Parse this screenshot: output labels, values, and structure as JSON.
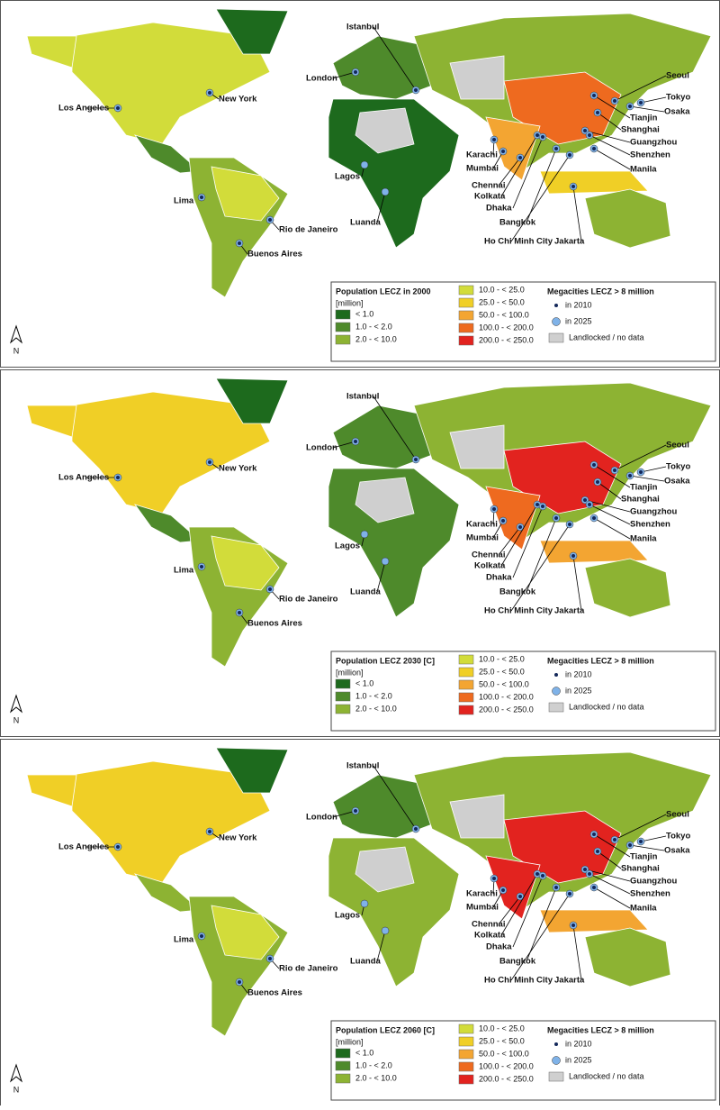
{
  "panels": [
    {
      "legend_title": "Population LECZ in 2000",
      "unit": "[million]"
    },
    {
      "legend_title": "Population LECZ 2030 [C]",
      "unit": "[million]"
    },
    {
      "legend_title": "Population LECZ 2060 [C]",
      "unit": "[million]"
    }
  ],
  "legend_classes": [
    {
      "label": "< 1.0",
      "color": "#1d6a1d"
    },
    {
      "label": "1.0 -     < 2.0",
      "color": "#4e8a2b"
    },
    {
      "label": "2.0 -     < 10.0",
      "color": "#8db333"
    },
    {
      "label": "10.0 -    < 25.0",
      "color": "#d2dc3a"
    },
    {
      "label": "25.0 -    < 50.0",
      "color": "#f0cf26"
    },
    {
      "label": "50.0 -  < 100.0",
      "color": "#f3a532"
    },
    {
      "label": "100.0 -  < 200.0",
      "color": "#ee6a1f"
    },
    {
      "label": "200.0 -  < 250.0",
      "color": "#e2231f"
    }
  ],
  "megacity_legend": {
    "title": "Megacities LECZ > 8 million",
    "in_2010": "in 2010",
    "in_2025": "in 2025",
    "landlocked": "Landlocked / no data",
    "landlocked_color": "#cfcfcf",
    "dot_2010_color": "#14285a",
    "dot_2025_color": "#7fb2e8"
  },
  "cities": [
    "Istanbul",
    "London",
    "New York",
    "Los Angeles",
    "Lima",
    "Rio de Janeiro",
    "Buenos Aires",
    "Lagos",
    "Luanda",
    "Karachi",
    "Mumbai",
    "Chennai",
    "Kolkata",
    "Dhaka",
    "Bangkok",
    "Ho Chi Minh City",
    "Jakarta",
    "Seoul",
    "Tokyo",
    "Osaka",
    "Tianjin",
    "Shanghai",
    "Guangzhou",
    "Shenzhen",
    "Manila"
  ],
  "north": "N"
}
